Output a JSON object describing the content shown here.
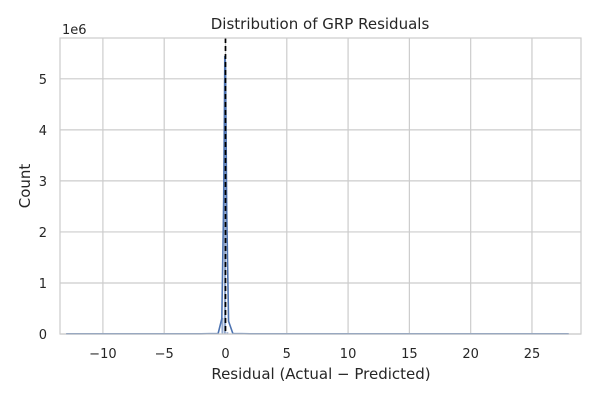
{
  "chart_data": {
    "type": "bar",
    "title": "Distribution of GRP Residuals",
    "xlabel": "Residual (Actual − Predicted)",
    "ylabel": "Count",
    "y_offset_text": "1e6",
    "xlim": [
      -13.5,
      29
    ],
    "ylim": [
      0,
      5.8
    ],
    "xticks": [
      -10,
      -5,
      0,
      5,
      10,
      15,
      20,
      25
    ],
    "xtick_labels": [
      "−10",
      "−5",
      "0",
      "5",
      "10",
      "15",
      "20",
      "25"
    ],
    "yticks": [
      0,
      1,
      2,
      3,
      4,
      5
    ],
    "ytick_labels": [
      "0",
      "1",
      "2",
      "3",
      "4",
      "5"
    ],
    "grid": true,
    "bar_color": "#4c72b0",
    "line_color": "#4c72b0",
    "reference_line": {
      "x": 0,
      "style": "dashed",
      "color": "#000000"
    },
    "bins": [
      {
        "x0": -0.35,
        "x1": -0.15,
        "value": 0.32
      },
      {
        "x0": -0.15,
        "x1": 0.05,
        "value": 5.45
      },
      {
        "x0": 0.05,
        "x1": 0.25,
        "value": 0.04
      }
    ],
    "kde": [
      [
        -13.0,
        0.004
      ],
      [
        -2.0,
        0.004
      ],
      [
        -0.6,
        0.01
      ],
      [
        -0.3,
        0.3
      ],
      [
        -0.15,
        2.6
      ],
      [
        -0.05,
        5.45
      ],
      [
        0.0,
        5.3
      ],
      [
        0.1,
        2.4
      ],
      [
        0.25,
        0.25
      ],
      [
        0.6,
        0.01
      ],
      [
        2.0,
        0.004
      ],
      [
        28.0,
        0.004
      ]
    ]
  }
}
